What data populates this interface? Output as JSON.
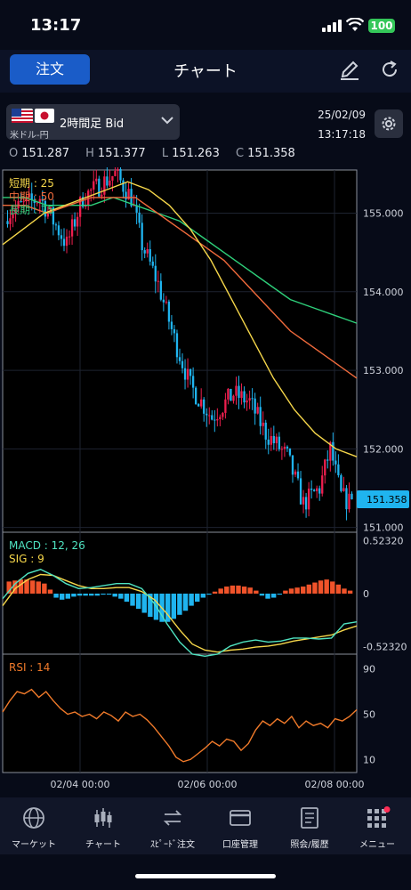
{
  "status": {
    "time": "13:17",
    "battery": "100"
  },
  "header": {
    "order_label": "注文",
    "title": "チャート"
  },
  "symbol": {
    "label": "米ドル-円",
    "period": "2時間足  Bid",
    "date": "25/02/09",
    "clock": "13:17:18"
  },
  "ohlc": [
    {
      "key": "O",
      "value": "151.287"
    },
    {
      "key": "H",
      "value": "151.377"
    },
    {
      "key": "L",
      "value": "151.263"
    },
    {
      "key": "C",
      "value": "151.358"
    }
  ],
  "chart_data": [
    {
      "type": "candlestick",
      "legend": [
        {
          "label": "短期 : 25",
          "color": "#f5d64a"
        },
        {
          "label": "中期 : 50",
          "color": "#f06a3c"
        },
        {
          "label": "長期 : 75",
          "color": "#2ecf7a"
        }
      ],
      "y_ticks": [
        "155.000",
        "154.000",
        "153.000",
        "152.000",
        "151.000"
      ],
      "ylim": [
        150.95,
        155.55
      ],
      "current_price": "151.358",
      "x_ticks": [
        "02/04 00:00",
        "02/06 00:00",
        "02/08 00:00"
      ],
      "sma_short": [
        154.6,
        154.8,
        155.0,
        155.1,
        155.2,
        155.3,
        155.4,
        155.3,
        155.1,
        154.8,
        154.4,
        153.9,
        153.4,
        152.9,
        152.5,
        152.2,
        152.0,
        151.9
      ],
      "sma_mid": [
        155.1,
        155.1,
        155.0,
        155.1,
        155.2,
        155.2,
        155.2,
        155.0,
        154.8,
        154.6,
        154.4,
        154.1,
        153.8,
        153.5,
        153.3,
        153.1,
        152.9
      ],
      "sma_long": [
        155.2,
        155.2,
        155.1,
        155.1,
        155.1,
        155.2,
        155.1,
        155.0,
        154.9,
        154.7,
        154.5,
        154.3,
        154.1,
        153.9,
        153.8,
        153.7,
        153.6
      ]
    },
    {
      "type": "bar",
      "legend": [
        {
          "label": "MACD : 12, 26",
          "color": "#4fe3c1"
        },
        {
          "label": "SIG : 9",
          "color": "#f5d64a"
        }
      ],
      "y_ticks": [
        "0.52320",
        "0",
        "-0.52320"
      ],
      "ylim": [
        -0.6,
        0.6
      ],
      "histogram": [
        0.12,
        0.13,
        0.14,
        0.14,
        0.13,
        0.12,
        0.1,
        0.04,
        -0.04,
        -0.06,
        -0.05,
        -0.03,
        -0.02,
        -0.02,
        -0.02,
        -0.02,
        -0.01,
        -0.01,
        -0.03,
        -0.05,
        -0.08,
        -0.12,
        -0.15,
        -0.19,
        -0.23,
        -0.26,
        -0.28,
        -0.28,
        -0.25,
        -0.21,
        -0.17,
        -0.12,
        -0.08,
        -0.04,
        -0.01,
        0.02,
        0.05,
        0.07,
        0.08,
        0.08,
        0.07,
        0.06,
        0.03,
        -0.02,
        -0.05,
        -0.04,
        -0.01,
        0.03,
        0.05,
        0.06,
        0.07,
        0.09,
        0.11,
        0.13,
        0.14,
        0.12,
        0.09,
        0.05,
        0.03
      ],
      "macd": [
        -0.05,
        0.1,
        0.2,
        0.24,
        0.18,
        0.1,
        0.05,
        0.06,
        0.08,
        0.1,
        0.1,
        0.05,
        -0.1,
        -0.3,
        -0.48,
        -0.6,
        -0.62,
        -0.6,
        -0.52,
        -0.48,
        -0.46,
        -0.48,
        -0.47,
        -0.44,
        -0.44,
        -0.45,
        -0.44,
        -0.3,
        -0.28
      ],
      "signal": [
        -0.12,
        0.05,
        0.14,
        0.19,
        0.18,
        0.13,
        0.08,
        0.05,
        0.05,
        0.06,
        0.06,
        0.02,
        -0.06,
        -0.2,
        -0.36,
        -0.5,
        -0.56,
        -0.58,
        -0.56,
        -0.55,
        -0.53,
        -0.52,
        -0.5,
        -0.47,
        -0.45,
        -0.43,
        -0.41,
        -0.36,
        -0.32
      ]
    },
    {
      "type": "line",
      "legend": [
        {
          "label": "RSI : 14",
          "color": "#f07a2a"
        }
      ],
      "y_ticks": [
        "90",
        "50",
        "10"
      ],
      "ylim": [
        0,
        100
      ],
      "values": [
        52,
        62,
        70,
        68,
        72,
        65,
        70,
        62,
        55,
        50,
        52,
        48,
        50,
        46,
        52,
        49,
        44,
        52,
        48,
        50,
        45,
        38,
        30,
        22,
        12,
        8,
        10,
        15,
        20,
        26,
        22,
        28,
        26,
        18,
        24,
        36,
        44,
        40,
        46,
        42,
        48,
        38,
        44,
        40,
        42,
        38,
        46,
        44,
        48,
        54
      ]
    }
  ],
  "tabs": [
    {
      "label": "マーケット",
      "icon": "globe-icon"
    },
    {
      "label": "チャート",
      "icon": "candlestick-icon"
    },
    {
      "label": "ｽﾋﾟｰﾄﾞ注文",
      "icon": "swap-icon"
    },
    {
      "label": "口座管理",
      "icon": "card-icon"
    },
    {
      "label": "照会/履歴",
      "icon": "document-icon"
    },
    {
      "label": "メニュー",
      "icon": "grid-icon"
    }
  ],
  "colors": {
    "up": "#ef1f4e",
    "down": "#1fb4ef",
    "accent": "#1a5cc8"
  }
}
